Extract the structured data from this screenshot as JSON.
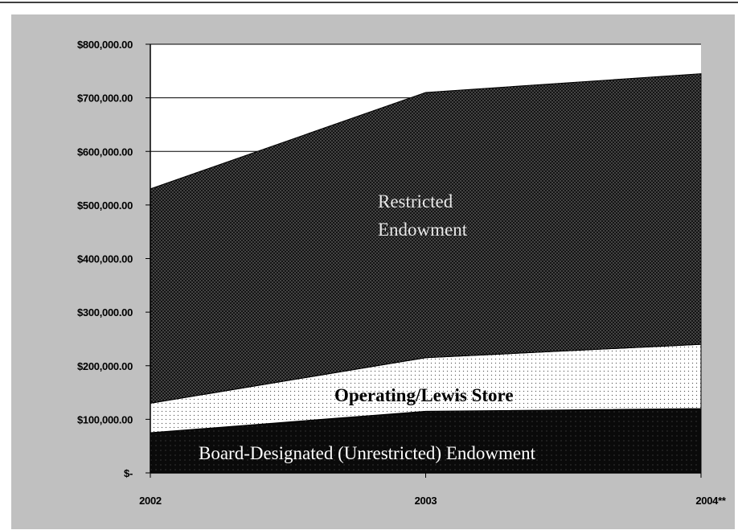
{
  "chart_data": {
    "type": "area",
    "stacked": true,
    "categories": [
      "2002",
      "2003",
      "2004**"
    ],
    "series": [
      {
        "name": "Board-Designated (Unrestricted) Endowment",
        "values": [
          75000,
          115000,
          120000
        ]
      },
      {
        "name": "Operating/Lewis Store",
        "values": [
          55000,
          100000,
          120000
        ]
      },
      {
        "name": "Restricted Endowment",
        "values": [
          400000,
          495000,
          505000
        ]
      }
    ],
    "ylim": [
      0,
      800000
    ],
    "yticks": [
      0,
      100000,
      200000,
      300000,
      400000,
      500000,
      600000,
      700000,
      800000
    ],
    "ytick_labels": [
      "$-",
      "$100,000.00",
      "$200,000.00",
      "$300,000.00",
      "$400,000.00",
      "$500,000.00",
      "$600,000.00",
      "$700,000.00",
      "$800,000.00"
    ],
    "grid": true,
    "legend": "none",
    "colors": {
      "frame_bg": "#c0c0c0",
      "plot_bg": "#ffffff",
      "board_designated": "#0a0a0a",
      "operating": "#ffffff",
      "restricted": "#141414"
    }
  },
  "annotations": {
    "restricted": [
      "Restricted",
      "Endowment"
    ],
    "operating": "Operating/Lewis Store",
    "board": "Board-Designated (Unrestricted) Endowment"
  }
}
